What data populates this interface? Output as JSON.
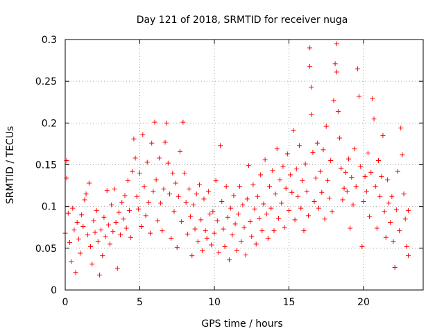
{
  "chart_data": {
    "type": "scatter",
    "title": "Day 121 of 2018, SRMTID for receiver nuga",
    "xlabel": "GPS time / hours",
    "ylabel": "SRMTID / TECUs",
    "xlim": [
      0,
      24
    ],
    "ylim": [
      0,
      0.3
    ],
    "xticks": [
      0,
      5,
      10,
      15,
      20
    ],
    "yticks": [
      0,
      0.05,
      0.1,
      0.15,
      0.2,
      0.25,
      0.3
    ],
    "xtick_labels": [
      "0",
      "5",
      "10",
      "15",
      "20"
    ],
    "ytick_labels": [
      "0",
      "0.05",
      "0.1",
      "0.15",
      "0.2",
      "0.25",
      "0.3"
    ],
    "grid": true,
    "marker": "+",
    "series_color": "#ff0000",
    "series": [
      {
        "name": "SRMTID",
        "points": [
          [
            0.0,
            0.068
          ],
          [
            0.1,
            0.155
          ],
          [
            0.1,
            0.134
          ],
          [
            0.2,
            0.092
          ],
          [
            0.3,
            0.057
          ],
          [
            0.4,
            0.034
          ],
          [
            0.5,
            0.098
          ],
          [
            0.6,
            0.072
          ],
          [
            0.7,
            0.021
          ],
          [
            0.8,
            0.081
          ],
          [
            0.9,
            0.061
          ],
          [
            1.0,
            0.044
          ],
          [
            1.1,
            0.09
          ],
          [
            1.2,
            0.076
          ],
          [
            1.3,
            0.108
          ],
          [
            1.4,
            0.115
          ],
          [
            1.5,
            0.066
          ],
          [
            1.6,
            0.128
          ],
          [
            1.7,
            0.052
          ],
          [
            1.8,
            0.031
          ],
          [
            1.9,
            0.083
          ],
          [
            2.0,
            0.069
          ],
          [
            2.1,
            0.095
          ],
          [
            2.2,
            0.058
          ],
          [
            2.3,
            0.018
          ],
          [
            2.4,
            0.072
          ],
          [
            2.5,
            0.041
          ],
          [
            2.6,
            0.087
          ],
          [
            2.7,
            0.064
          ],
          [
            2.8,
            0.119
          ],
          [
            2.9,
            0.078
          ],
          [
            3.0,
            0.055
          ],
          [
            3.1,
            0.102
          ],
          [
            3.2,
            0.07
          ],
          [
            3.3,
            0.121
          ],
          [
            3.4,
            0.081
          ],
          [
            3.5,
            0.026
          ],
          [
            3.6,
            0.093
          ],
          [
            3.7,
            0.066
          ],
          [
            3.8,
            0.105
          ],
          [
            3.9,
            0.085
          ],
          [
            4.0,
            0.113
          ],
          [
            4.1,
            0.074
          ],
          [
            4.2,
            0.131
          ],
          [
            4.3,
            0.095
          ],
          [
            4.4,
            0.063
          ],
          [
            4.5,
            0.142
          ],
          [
            4.6,
            0.181
          ],
          [
            4.7,
            0.158
          ],
          [
            4.8,
            0.112
          ],
          [
            4.9,
            0.097
          ],
          [
            5.0,
            0.14
          ],
          [
            5.1,
            0.076
          ],
          [
            5.2,
            0.186
          ],
          [
            5.3,
            0.124
          ],
          [
            5.4,
            0.089
          ],
          [
            5.5,
            0.153
          ],
          [
            5.6,
            0.105
          ],
          [
            5.7,
            0.068
          ],
          [
            5.8,
            0.176
          ],
          [
            5.9,
            0.118
          ],
          [
            6.0,
            0.201
          ],
          [
            6.1,
            0.132
          ],
          [
            6.2,
            0.083
          ],
          [
            6.3,
            0.158
          ],
          [
            6.4,
            0.104
          ],
          [
            6.5,
            0.071
          ],
          [
            6.6,
            0.121
          ],
          [
            6.7,
            0.177
          ],
          [
            6.8,
            0.2
          ],
          [
            6.9,
            0.152
          ],
          [
            7.0,
            0.115
          ],
          [
            7.1,
            0.062
          ],
          [
            7.2,
            0.14
          ],
          [
            7.3,
            0.094
          ],
          [
            7.4,
            0.128
          ],
          [
            7.5,
            0.051
          ],
          [
            7.6,
            0.112
          ],
          [
            7.7,
            0.166
          ],
          [
            7.8,
            0.082
          ],
          [
            7.9,
            0.201
          ],
          [
            8.0,
            0.14
          ],
          [
            8.1,
            0.105
          ],
          [
            8.2,
            0.067
          ],
          [
            8.3,
            0.121
          ],
          [
            8.4,
            0.088
          ],
          [
            8.5,
            0.041
          ],
          [
            8.6,
            0.102
          ],
          [
            8.7,
            0.073
          ],
          [
            8.8,
            0.115
          ],
          [
            8.9,
            0.058
          ],
          [
            9.0,
            0.126
          ],
          [
            9.1,
            0.084
          ],
          [
            9.2,
            0.047
          ],
          [
            9.3,
            0.109
          ],
          [
            9.4,
            0.071
          ],
          [
            9.5,
            0.062
          ],
          [
            9.6,
            0.118
          ],
          [
            9.7,
            0.091
          ],
          [
            9.8,
            0.054
          ],
          [
            9.9,
            0.094
          ],
          [
            10.0,
            0.068
          ],
          [
            10.1,
            0.131
          ],
          [
            10.2,
            0.083
          ],
          [
            10.3,
            0.045
          ],
          [
            10.4,
            0.173
          ],
          [
            10.5,
            0.106
          ],
          [
            10.6,
            0.073
          ],
          [
            10.7,
            0.052
          ],
          [
            10.8,
            0.124
          ],
          [
            10.9,
            0.087
          ],
          [
            11.0,
            0.036
          ],
          [
            11.1,
            0.098
          ],
          [
            11.2,
            0.066
          ],
          [
            11.3,
            0.113
          ],
          [
            11.4,
            0.079
          ],
          [
            11.5,
            0.047
          ],
          [
            11.6,
            0.091
          ],
          [
            11.7,
            0.124
          ],
          [
            11.8,
            0.058
          ],
          [
            11.9,
            0.102
          ],
          [
            12.0,
            0.075
          ],
          [
            12.1,
            0.042
          ],
          [
            12.2,
            0.109
          ],
          [
            12.3,
            0.149
          ],
          [
            12.4,
            0.082
          ],
          [
            12.5,
            0.064
          ],
          [
            12.6,
            0.126
          ],
          [
            12.7,
            0.097
          ],
          [
            12.8,
            0.055
          ],
          [
            12.9,
            0.112
          ],
          [
            13.0,
            0.086
          ],
          [
            13.1,
            0.138
          ],
          [
            13.2,
            0.071
          ],
          [
            13.3,
            0.103
          ],
          [
            13.4,
            0.156
          ],
          [
            13.5,
            0.091
          ],
          [
            13.6,
            0.062
          ],
          [
            13.7,
            0.124
          ],
          [
            13.8,
            0.098
          ],
          [
            13.9,
            0.143
          ],
          [
            14.0,
            0.071
          ],
          [
            14.1,
            0.115
          ],
          [
            14.2,
            0.169
          ],
          [
            14.3,
            0.086
          ],
          [
            14.4,
            0.132
          ],
          [
            14.5,
            0.104
          ],
          [
            14.6,
            0.148
          ],
          [
            14.7,
            0.075
          ],
          [
            14.8,
            0.122
          ],
          [
            14.9,
            0.163
          ],
          [
            15.0,
            0.095
          ],
          [
            15.1,
            0.138
          ],
          [
            15.2,
            0.117
          ],
          [
            15.3,
            0.191
          ],
          [
            15.4,
            0.084
          ],
          [
            15.5,
            0.145
          ],
          [
            15.6,
            0.112
          ],
          [
            15.7,
            0.173
          ],
          [
            15.8,
            0.098
          ],
          [
            15.9,
            0.131
          ],
          [
            16.0,
            0.071
          ],
          [
            16.1,
            0.151
          ],
          [
            16.2,
            0.118
          ],
          [
            16.3,
            0.089
          ],
          [
            16.4,
            0.29
          ],
          [
            16.4,
            0.268
          ],
          [
            16.5,
            0.243
          ],
          [
            16.5,
            0.21
          ],
          [
            16.6,
            0.165
          ],
          [
            16.7,
            0.106
          ],
          [
            16.8,
            0.134
          ],
          [
            16.9,
            0.176
          ],
          [
            17.0,
            0.098
          ],
          [
            17.1,
            0.142
          ],
          [
            17.2,
            0.117
          ],
          [
            17.3,
            0.168
          ],
          [
            17.4,
            0.085
          ],
          [
            17.5,
            0.196
          ],
          [
            17.6,
            0.131
          ],
          [
            17.7,
            0.11
          ],
          [
            17.8,
            0.155
          ],
          [
            17.9,
            0.094
          ],
          [
            18.0,
            0.227
          ],
          [
            18.1,
            0.271
          ],
          [
            18.2,
            0.295
          ],
          [
            18.2,
            0.261
          ],
          [
            18.3,
            0.214
          ],
          [
            18.4,
            0.182
          ],
          [
            18.5,
            0.146
          ],
          [
            18.6,
            0.108
          ],
          [
            18.7,
            0.122
          ],
          [
            18.8,
            0.141
          ],
          [
            18.9,
            0.118
          ],
          [
            19.0,
            0.157
          ],
          [
            19.1,
            0.074
          ],
          [
            19.2,
            0.135
          ],
          [
            19.3,
            0.102
          ],
          [
            19.4,
            0.169
          ],
          [
            19.5,
            0.124
          ],
          [
            19.6,
            0.265
          ],
          [
            19.7,
            0.232
          ],
          [
            19.8,
            0.148
          ],
          [
            19.9,
            0.052
          ],
          [
            20.0,
            0.106
          ],
          [
            20.1,
            0.136
          ],
          [
            20.2,
            0.118
          ],
          [
            20.3,
            0.164
          ],
          [
            20.4,
            0.088
          ],
          [
            20.5,
            0.141
          ],
          [
            20.6,
            0.229
          ],
          [
            20.7,
            0.205
          ],
          [
            20.8,
            0.124
          ],
          [
            20.9,
            0.074
          ],
          [
            21.0,
            0.155
          ],
          [
            21.1,
            0.112
          ],
          [
            21.2,
            0.136
          ],
          [
            21.3,
            0.185
          ],
          [
            21.4,
            0.094
          ],
          [
            21.5,
            0.063
          ],
          [
            21.6,
            0.132
          ],
          [
            21.7,
            0.104
          ],
          [
            21.8,
            0.081
          ],
          [
            21.9,
            0.112
          ],
          [
            22.0,
            0.058
          ],
          [
            22.1,
            0.027
          ],
          [
            22.2,
            0.096
          ],
          [
            22.3,
            0.142
          ],
          [
            22.4,
            0.071
          ],
          [
            22.5,
            0.194
          ],
          [
            22.6,
            0.162
          ],
          [
            22.7,
            0.115
          ],
          [
            22.8,
            0.085
          ],
          [
            22.9,
            0.052
          ],
          [
            23.0,
            0.095
          ],
          [
            23.0,
            0.041
          ]
        ]
      }
    ]
  }
}
